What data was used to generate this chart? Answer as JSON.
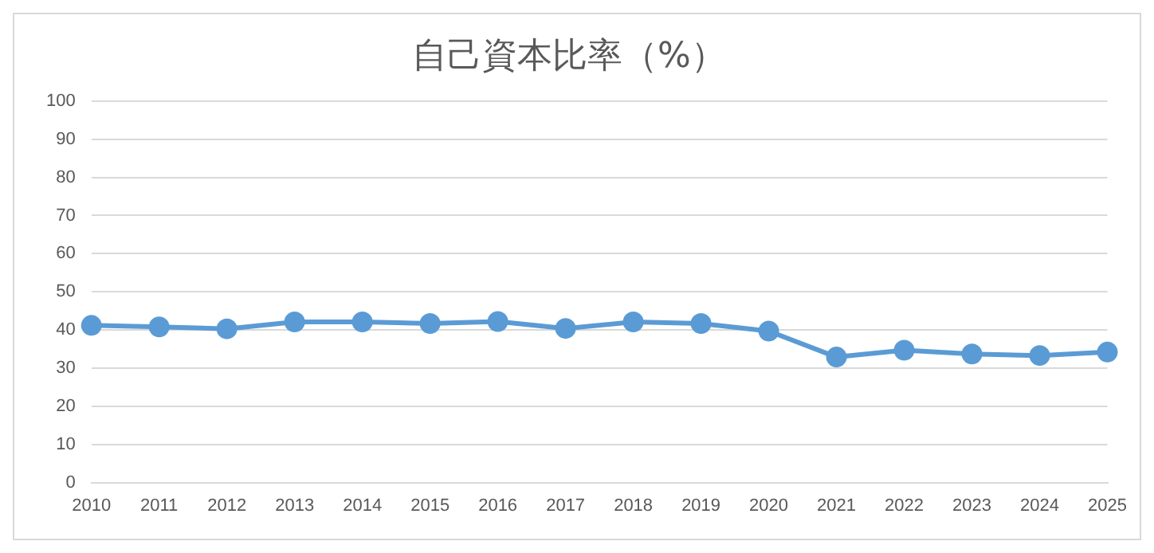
{
  "chart_data": {
    "type": "line",
    "title": "自己資本比率（%）",
    "categories": [
      "2010",
      "2011",
      "2012",
      "2013",
      "2014",
      "2015",
      "2016",
      "2017",
      "2018",
      "2019",
      "2020",
      "2021",
      "2022",
      "2023",
      "2024",
      "2025"
    ],
    "series": [
      {
        "color": "#5b9bd5",
        "values": [
          41.2,
          40.8,
          40.3,
          42.1,
          42.1,
          41.7,
          42.2,
          40.4,
          42.1,
          41.7,
          39.7,
          32.9,
          34.7,
          33.7,
          33.3,
          34.2
        ]
      }
    ],
    "ylim": [
      0,
      100
    ],
    "yticks": [
      0,
      10,
      20,
      30,
      40,
      50,
      60,
      70,
      80,
      90,
      100
    ],
    "grid": "y",
    "legend": false,
    "marker": "circle",
    "line_style": "solid"
  }
}
